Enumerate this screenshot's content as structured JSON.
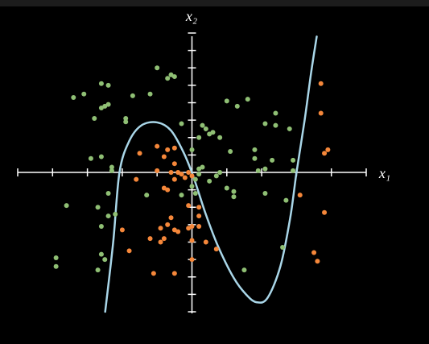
{
  "chart_data": {
    "type": "scatter",
    "x_label": "x₁",
    "y_label": "x₂",
    "xlim": [
      -5,
      5
    ],
    "ylim": [
      -8,
      8
    ],
    "xticks": [
      -5,
      -4,
      -3,
      -2,
      -1,
      0,
      1,
      2,
      3,
      4,
      5
    ],
    "yticks": [
      -8,
      -7,
      -6,
      -5,
      -4,
      -3,
      -2,
      -1,
      0,
      1,
      2,
      3,
      4,
      5,
      6,
      7,
      8
    ],
    "series": [
      {
        "type": "scatter",
        "color": "#8fbf74",
        "x": [
          -3.4,
          -3.1,
          -2.6,
          -2.4,
          -2.5,
          -2.6,
          -2.4,
          -2.8,
          -1.9,
          -1.9,
          -1.7,
          -1.2,
          -1.0,
          -0.7,
          -0.6,
          -0.5,
          1.0,
          1.3,
          1.6,
          2.4,
          2.1,
          2.4,
          2.8,
          -0.3,
          0.3,
          0.5,
          0.6,
          0.8,
          0.4,
          0.2,
          0.0,
          1.1,
          1.8,
          1.8,
          2.3,
          2.9,
          1.9,
          2.1,
          2.9,
          0.8,
          0.7,
          0.2,
          0.1,
          0.2,
          0.3,
          0.5,
          1.0,
          1.2,
          1.2,
          2.1,
          2.7,
          0.1,
          0.0,
          -0.3,
          -1.3,
          -2.4,
          -2.9,
          -2.6,
          -2.3,
          -2.3,
          -3.6,
          -2.7,
          -2.4,
          -2.2,
          -2.6,
          -2.6,
          -2.5,
          -3.9,
          -3.9,
          -2.7,
          1.5,
          2.6
        ],
        "values": [
          4.3,
          4.5,
          5.1,
          5.0,
          3.8,
          3.7,
          3.9,
          3.1,
          3.1,
          2.9,
          4.4,
          4.5,
          6.0,
          5.4,
          5.6,
          5.5,
          4.1,
          3.8,
          4.2,
          3.4,
          2.8,
          2.7,
          2.5,
          2.8,
          2.7,
          2.2,
          2.3,
          2.0,
          2.5,
          2.0,
          1.3,
          1.2,
          1.3,
          0.8,
          0.7,
          0.7,
          0.1,
          0.2,
          0.1,
          0.0,
          -0.2,
          0.2,
          -0.4,
          -0.1,
          0.3,
          -0.5,
          -0.9,
          -1.4,
          -1.1,
          -1.2,
          -1.6,
          -1.2,
          -0.8,
          -1.3,
          -1.3,
          -1.2,
          0.8,
          0.9,
          0.3,
          0.1,
          -1.9,
          -2.0,
          -2.5,
          -2.4,
          -3.1,
          -4.7,
          -5.0,
          -4.9,
          -5.4,
          -5.6,
          -5.6,
          -4.3
        ]
      },
      {
        "type": "scatter",
        "color": "#f5873a",
        "x": [
          3.7,
          3.7,
          3.9,
          3.8,
          3.1,
          3.8,
          3.5,
          3.6,
          -1.5,
          -1.0,
          -0.7,
          -0.5,
          -0.8,
          -0.5,
          -0.6,
          -1.0,
          -0.4,
          -0.3,
          -0.2,
          -0.1,
          0.0,
          -0.5,
          -0.8,
          -0.7,
          -0.1,
          0.2,
          0.2,
          0.2,
          0.0,
          -0.1,
          -0.6,
          -0.7,
          -0.9,
          -0.5,
          -0.4,
          -0.9,
          -2.0,
          -1.8,
          -1.2,
          -0.8,
          0.0,
          0.0,
          0.4,
          0.7,
          -1.1,
          -0.5,
          -1.6
        ],
        "values": [
          5.1,
          3.4,
          1.3,
          1.1,
          -1.3,
          -2.3,
          -4.6,
          -5.1,
          1.1,
          1.5,
          1.3,
          1.4,
          0.9,
          0.5,
          0.0,
          0.1,
          0.0,
          -0.1,
          -0.3,
          0.0,
          -0.2,
          -0.4,
          -0.9,
          -1.0,
          -1.9,
          -2.0,
          -2.5,
          -3.1,
          -3.1,
          -3.2,
          -2.6,
          -3.0,
          -3.2,
          -3.3,
          -3.4,
          -4.0,
          -3.3,
          -4.5,
          -3.8,
          -3.8,
          -3.9,
          -5.0,
          -4.0,
          -4.4,
          -5.8,
          -5.8,
          -0.4
        ]
      },
      {
        "type": "line",
        "color": "#a9d6e8",
        "x": [
          -2.49,
          -2.26,
          -2.08,
          -1.8,
          -1.45,
          -1.0,
          -0.6,
          -0.23,
          0.05,
          0.39,
          0.74,
          1.2,
          1.55,
          1.85,
          2.17,
          2.54,
          2.82,
          3.0,
          3.23,
          3.42,
          3.58
        ],
        "values": [
          -8.0,
          -4.0,
          0,
          1.8,
          2.7,
          2.87,
          2.4,
          1.1,
          -0.3,
          -2.36,
          -4.2,
          -6.06,
          -7.0,
          -7.45,
          -7.2,
          -5.37,
          -2.6,
          0,
          2.96,
          5.74,
          7.8
        ]
      }
    ]
  }
}
